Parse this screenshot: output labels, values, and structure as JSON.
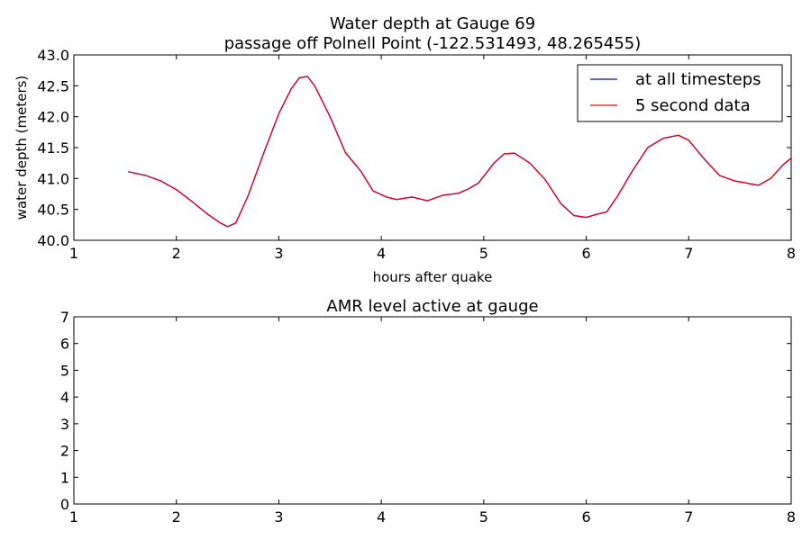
{
  "colors": {
    "all_timesteps": "#0000ff",
    "five_second": "#ff0000"
  },
  "chart_data": [
    {
      "type": "line",
      "title": "Water depth at Gauge 69",
      "subtitle": "passage off Polnell Point  (-122.531493, 48.265455)",
      "xlabel": "hours after quake",
      "ylabel": "water depth (meters)",
      "xlim": [
        1,
        8
      ],
      "ylim": [
        40.0,
        43.0
      ],
      "xticks": [
        "1",
        "2",
        "3",
        "4",
        "5",
        "6",
        "7",
        "8"
      ],
      "yticks": [
        "40.0",
        "40.5",
        "41.0",
        "41.5",
        "42.0",
        "42.5",
        "43.0"
      ],
      "grid": false,
      "legend_position": "top-right",
      "series": [
        {
          "name": "at all timesteps",
          "color": "#0000ff",
          "x": [
            1.53,
            1.7,
            1.85,
            2.0,
            2.15,
            2.3,
            2.42,
            2.5,
            2.58,
            2.7,
            2.85,
            3.0,
            3.12,
            3.2,
            3.28,
            3.35,
            3.5,
            3.65,
            3.8,
            3.92,
            4.05,
            4.15,
            4.3,
            4.45,
            4.6,
            4.75,
            4.85,
            4.95,
            5.1,
            5.2,
            5.3,
            5.45,
            5.6,
            5.75,
            5.88,
            6.0,
            6.1,
            6.2,
            6.3,
            6.45,
            6.6,
            6.75,
            6.9,
            7.0,
            7.15,
            7.3,
            7.45,
            7.55,
            7.68,
            7.8,
            7.92,
            8.0
          ],
          "y": [
            41.11,
            41.05,
            40.96,
            40.82,
            40.63,
            40.43,
            40.29,
            40.22,
            40.28,
            40.72,
            41.4,
            42.05,
            42.45,
            42.63,
            42.65,
            42.5,
            42.0,
            41.42,
            41.12,
            40.8,
            40.7,
            40.66,
            40.7,
            40.64,
            40.73,
            40.76,
            40.83,
            40.93,
            41.25,
            41.4,
            41.41,
            41.25,
            40.98,
            40.6,
            40.4,
            40.37,
            40.42,
            40.46,
            40.7,
            41.12,
            41.5,
            41.65,
            41.7,
            41.62,
            41.32,
            41.05,
            40.96,
            40.93,
            40.89,
            41.0,
            41.22,
            41.33
          ]
        },
        {
          "name": "5 second data",
          "color": "#ff0000",
          "x": [
            1.53,
            1.7,
            1.85,
            2.0,
            2.15,
            2.3,
            2.42,
            2.5,
            2.58,
            2.7,
            2.85,
            3.0,
            3.12,
            3.2,
            3.28,
            3.35,
            3.5,
            3.65,
            3.8,
            3.92,
            4.05,
            4.15,
            4.3,
            4.45,
            4.6,
            4.75,
            4.85,
            4.95,
            5.1,
            5.2,
            5.3,
            5.45,
            5.6,
            5.75,
            5.88,
            6.0,
            6.1,
            6.2,
            6.3,
            6.45,
            6.6,
            6.75,
            6.9,
            7.0,
            7.15,
            7.3,
            7.45,
            7.55,
            7.68,
            7.8,
            7.92,
            8.0
          ],
          "y": [
            41.11,
            41.05,
            40.96,
            40.82,
            40.63,
            40.43,
            40.29,
            40.22,
            40.28,
            40.72,
            41.4,
            42.05,
            42.45,
            42.63,
            42.65,
            42.5,
            42.0,
            41.42,
            41.12,
            40.8,
            40.7,
            40.66,
            40.7,
            40.64,
            40.73,
            40.76,
            40.83,
            40.93,
            41.25,
            41.4,
            41.41,
            41.25,
            40.98,
            40.6,
            40.4,
            40.37,
            40.42,
            40.46,
            40.7,
            41.12,
            41.5,
            41.65,
            41.7,
            41.62,
            41.32,
            41.05,
            40.96,
            40.93,
            40.89,
            41.0,
            41.22,
            41.33
          ]
        }
      ]
    },
    {
      "type": "line",
      "title": "AMR level active at gauge",
      "xlabel": "",
      "ylabel": "",
      "xlim": [
        1,
        8
      ],
      "ylim": [
        0,
        7
      ],
      "xticks": [
        "1",
        "2",
        "3",
        "4",
        "5",
        "6",
        "7",
        "8"
      ],
      "yticks": [
        "0",
        "1",
        "2",
        "3",
        "4",
        "5",
        "6",
        "7"
      ],
      "grid": false,
      "series": []
    }
  ]
}
